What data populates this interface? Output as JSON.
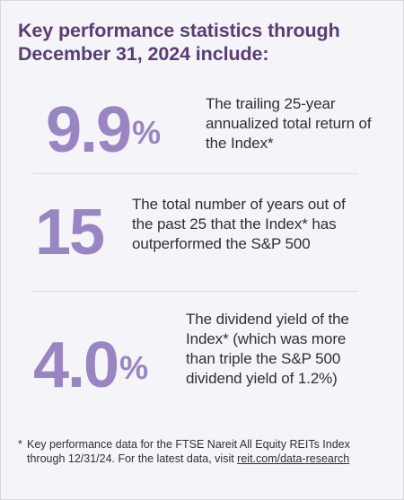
{
  "headline": "Key performance statistics through December 31, 2024 include:",
  "stats": [
    {
      "value": "9.9",
      "suffix": "%",
      "description": "The trailing 25-year annualized total return of the Index*"
    },
    {
      "value": "15",
      "suffix": "",
      "description": "The total number of years out of the past 25 that the Index* has outperformed the S&P 500"
    },
    {
      "value": "4.0",
      "suffix": "%",
      "description": "The dividend yield of the Index* (which was more than triple the S&P 500 dividend yield of 1.2%)"
    }
  ],
  "footnote": {
    "marker": "*",
    "text": "Key performance data for the FTSE Nareit All Equity REITs Index through 12/31/24. For the latest data, visit ",
    "link_text": "reit.com/data-research"
  },
  "colors": {
    "headline": "#5a3e73",
    "stat_number": "#9a85c3",
    "body_text": "#2f2f34",
    "background": "#f5f4f9"
  }
}
